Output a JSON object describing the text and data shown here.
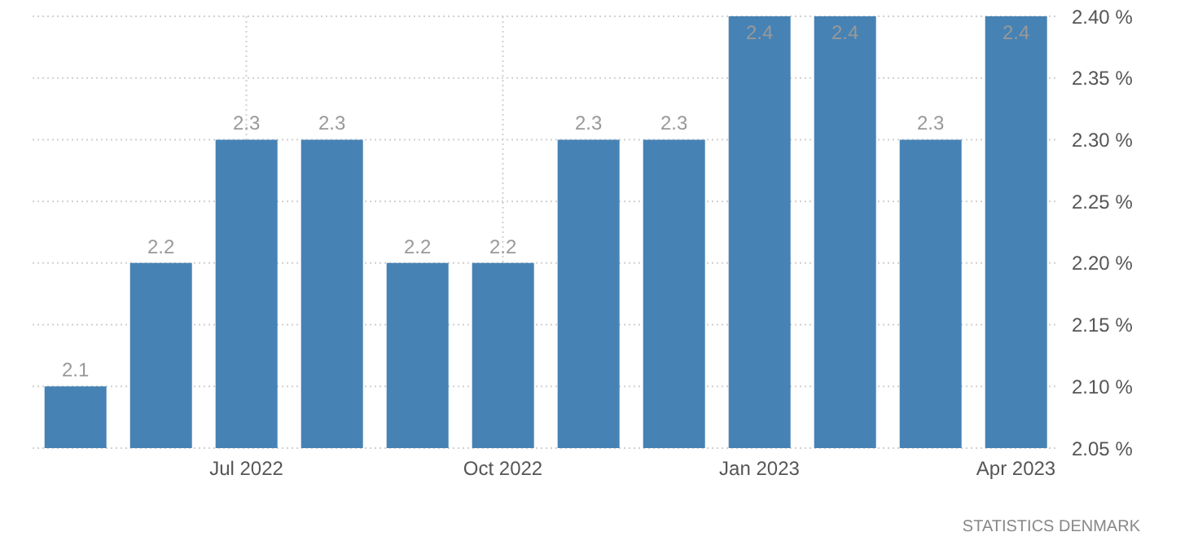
{
  "chart_data": {
    "type": "bar",
    "categories": [
      null,
      null,
      "Jul 2022",
      null,
      null,
      "Oct 2022",
      null,
      null,
      "Jan 2023",
      null,
      null,
      "Apr 2023"
    ],
    "values": [
      2.1,
      2.2,
      2.3,
      2.3,
      2.2,
      2.2,
      2.3,
      2.3,
      2.4,
      2.4,
      2.3,
      2.4
    ],
    "color": "#4682b4",
    "ylim": [
      2.05,
      2.4
    ],
    "yticks": [
      {
        "value": 2.05,
        "label": "2.05 %"
      },
      {
        "value": 2.1,
        "label": "2.10 %"
      },
      {
        "value": 2.15,
        "label": "2.15 %"
      },
      {
        "value": 2.2,
        "label": "2.20 %"
      },
      {
        "value": 2.25,
        "label": "2.25 %"
      },
      {
        "value": 2.3,
        "label": "2.30 %"
      },
      {
        "value": 2.35,
        "label": "2.35 %"
      },
      {
        "value": 2.4,
        "label": "2.40 %"
      }
    ],
    "grid": true,
    "data_labels": true,
    "annotations": [
      "STATISTICS DENMARK"
    ]
  }
}
